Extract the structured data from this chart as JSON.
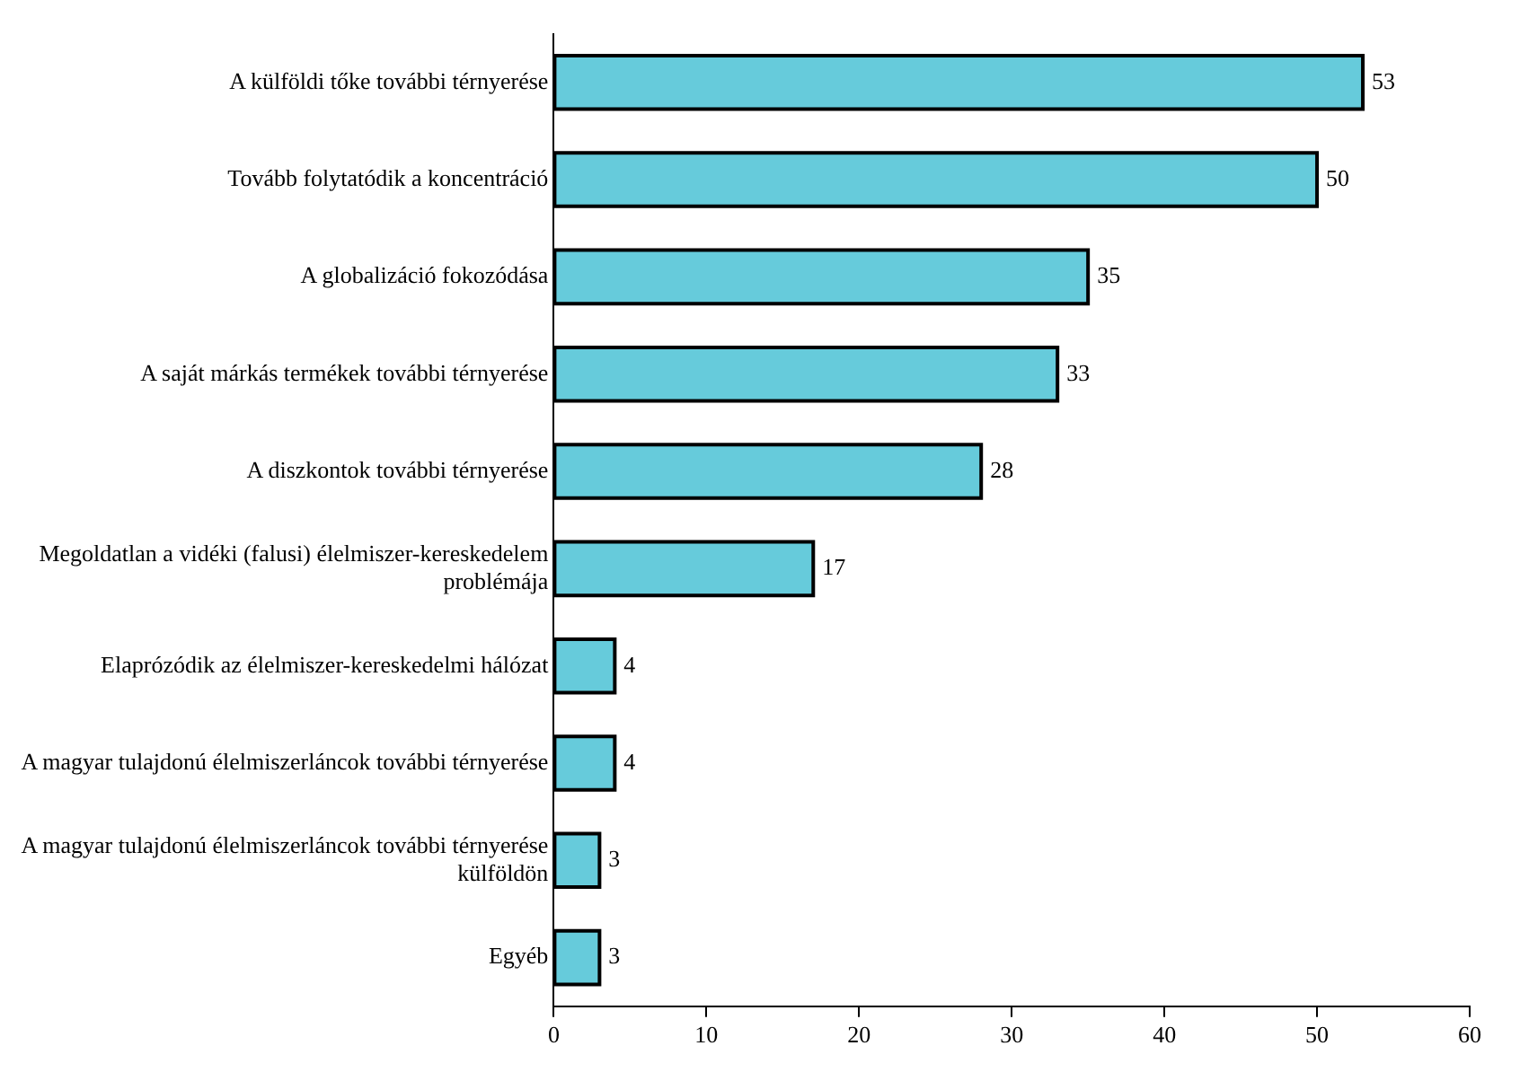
{
  "chart_data": {
    "type": "bar",
    "orientation": "horizontal",
    "categories": [
      "A külföldi tőke további térnyerése",
      "Tovább folytatódik a koncentráció",
      "A globalizáció fokozódása",
      "A saját márkás termékek további térnyerése",
      "A diszkontok további térnyerése",
      "Megoldatlan a vidéki (falusi) élelmiszer-kereskedelem problémája",
      "Elaprózódik az élelmiszer-kereskedelmi hálózat",
      "A magyar tulajdonú élelmiszerláncok további térnyerése",
      "A magyar tulajdonú élelmiszerláncok további térnyerése külföldön",
      "Egyéb"
    ],
    "values": [
      53,
      50,
      35,
      33,
      28,
      17,
      4,
      4,
      3,
      3
    ],
    "color": "#66cbdb",
    "xlim": [
      0,
      60
    ],
    "xticks": [
      0,
      10,
      20,
      30,
      40,
      50,
      60
    ],
    "grid": false,
    "legend": false,
    "data_labels": true
  }
}
